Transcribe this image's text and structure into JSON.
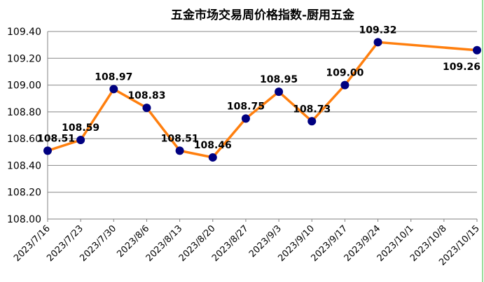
{
  "chart_data": {
    "type": "line",
    "title": "五金市场交易周价格指数-厨用五金",
    "xlabel": "",
    "ylabel": "",
    "ylim": [
      108.0,
      109.4
    ],
    "yticks": [
      "108.00",
      "108.20",
      "108.40",
      "108.60",
      "108.80",
      "109.00",
      "109.20",
      "109.40"
    ],
    "categories": [
      "2023/7/16",
      "2023/7/23",
      "2023/7/30",
      "2023/8/6",
      "2023/8/13",
      "2023/8/20",
      "2023/8/27",
      "2023/9/3",
      "2023/9/10",
      "2023/9/17",
      "2023/9/24",
      "2023/10/1",
      "2023/10/8",
      "2023/10/15"
    ],
    "series": [
      {
        "values": [
          108.51,
          108.59,
          108.97,
          108.83,
          108.51,
          108.46,
          108.75,
          108.95,
          108.73,
          109.0,
          109.32,
          null,
          null,
          109.26
        ],
        "labels": [
          "108.51",
          "108.59",
          "108.97",
          "108.83",
          "108.51",
          "108.46",
          "108.75",
          "108.95",
          "108.73",
          "109.00",
          "109.32",
          null,
          null,
          "109.26"
        ]
      }
    ],
    "grid": true,
    "legend": "none",
    "colors": {
      "line": "#ff7f0e",
      "marker": "#000080",
      "grid": "#888888",
      "frame_right": "#99dd99"
    }
  }
}
